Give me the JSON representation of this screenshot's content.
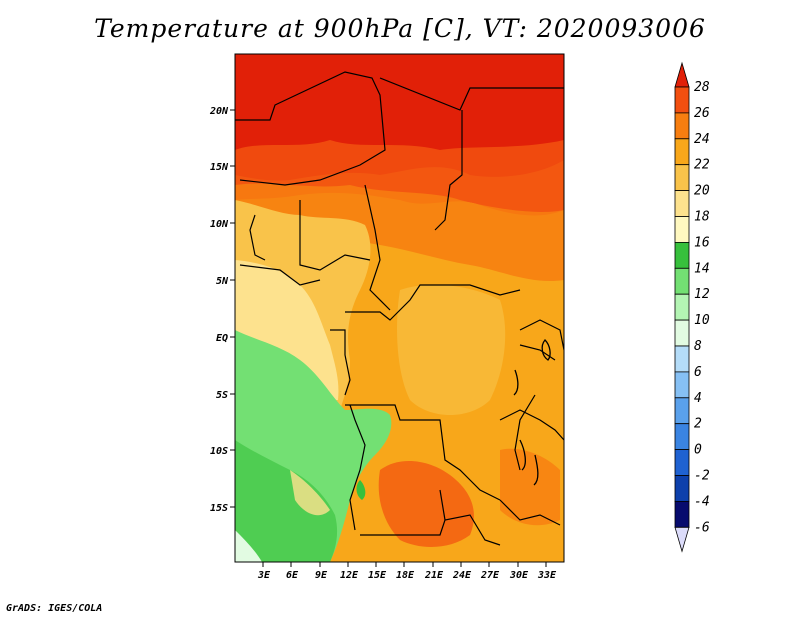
{
  "title": "Temperature at 900hPa [C], VT: 2020093006",
  "credit": "GrADS: IGES/COLA",
  "map": {
    "variable": "Temperature at 900hPa",
    "units": "C",
    "valid_time": "2020093006",
    "lat_ticks": [
      "20N",
      "15N",
      "10N",
      "5N",
      "EQ",
      "5S",
      "10S",
      "15S"
    ],
    "lon_ticks": [
      "3E",
      "6E",
      "9E",
      "12E",
      "15E",
      "18E",
      "21E",
      "24E",
      "27E",
      "30E",
      "33E"
    ]
  },
  "colorbar": {
    "levels": [
      "28",
      "26",
      "24",
      "22",
      "20",
      "18",
      "16",
      "14",
      "12",
      "10",
      "8",
      "6",
      "4",
      "2",
      "0",
      "-2",
      "-4",
      "-6"
    ],
    "colors": [
      "#e12008",
      "#f24f10",
      "#f77e10",
      "#f8a71a",
      "#f9c34a",
      "#fde28e",
      "#fff8c0",
      "#37c03c",
      "#73e073",
      "#b4f5b4",
      "#e2fbe2",
      "#b4dcf8",
      "#86c0f4",
      "#5aa1ec",
      "#3a84e2",
      "#1f62d2",
      "#0d40ac",
      "#070b6e",
      "#dcdcfa"
    ]
  }
}
